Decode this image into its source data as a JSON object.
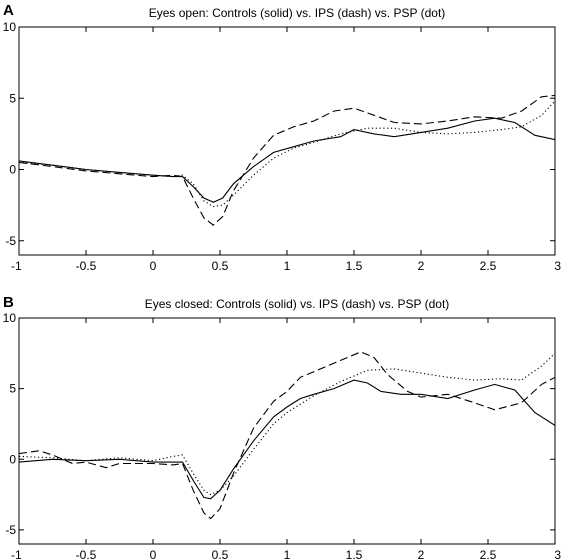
{
  "chart_data": [
    {
      "type": "line",
      "panel_label": "A",
      "title": "Eyes open: Controls (solid) vs. IPS (dash) vs. PSP (dot)",
      "xlim": [
        -1,
        3
      ],
      "ylim": [
        -6,
        10
      ],
      "xticks": [
        "-1",
        "-0.5",
        "0",
        "0.5",
        "1",
        "1.5",
        "2",
        "2.5",
        "3"
      ],
      "yticks": [
        "-5",
        "0",
        "5",
        "10"
      ],
      "grid": false,
      "series": [
        {
          "style": "solid",
          "x": [
            -1,
            -0.75,
            -0.5,
            -0.25,
            0,
            0.15,
            0.22,
            0.3,
            0.38,
            0.45,
            0.52,
            0.6,
            0.75,
            0.9,
            1.05,
            1.2,
            1.4,
            1.5,
            1.65,
            1.8,
            2.0,
            2.2,
            2.4,
            2.55,
            2.7,
            2.85,
            3.0
          ],
          "y": [
            0.6,
            0.3,
            0.0,
            -0.2,
            -0.4,
            -0.5,
            -0.5,
            -1.2,
            -2.0,
            -2.3,
            -2.0,
            -1.0,
            0.2,
            1.2,
            1.6,
            2.0,
            2.3,
            2.8,
            2.5,
            2.3,
            2.6,
            2.9,
            3.4,
            3.6,
            3.3,
            2.4,
            2.1
          ]
        },
        {
          "style": "dash",
          "x": [
            -1,
            -0.75,
            -0.5,
            -0.25,
            0,
            0.15,
            0.22,
            0.3,
            0.38,
            0.45,
            0.52,
            0.6,
            0.75,
            0.9,
            1.05,
            1.2,
            1.35,
            1.5,
            1.65,
            1.8,
            2.0,
            2.2,
            2.4,
            2.6,
            2.75,
            2.9,
            3.0
          ],
          "y": [
            0.5,
            0.2,
            -0.1,
            -0.3,
            -0.5,
            -0.4,
            -0.5,
            -2.0,
            -3.4,
            -3.9,
            -3.3,
            -1.5,
            0.8,
            2.4,
            3.0,
            3.4,
            4.1,
            4.3,
            3.8,
            3.3,
            3.2,
            3.4,
            3.7,
            3.6,
            4.1,
            5.1,
            5.2
          ]
        },
        {
          "style": "dot",
          "x": [
            -1,
            -0.75,
            -0.5,
            -0.25,
            0,
            0.15,
            0.22,
            0.3,
            0.38,
            0.45,
            0.52,
            0.6,
            0.75,
            0.9,
            1.05,
            1.2,
            1.4,
            1.6,
            1.8,
            2.0,
            2.2,
            2.4,
            2.6,
            2.75,
            2.9,
            3.0
          ],
          "y": [
            0.5,
            0.3,
            0.0,
            -0.2,
            -0.4,
            -0.5,
            -0.4,
            -1.0,
            -2.2,
            -2.6,
            -2.5,
            -1.8,
            -0.4,
            0.8,
            1.5,
            1.9,
            2.5,
            2.9,
            2.9,
            2.6,
            2.5,
            2.6,
            2.8,
            3.0,
            3.8,
            4.8
          ]
        }
      ]
    },
    {
      "type": "line",
      "panel_label": "B",
      "title": "Eyes closed: Controls (solid) vs. IPS (dash) vs. PSP (dot)",
      "xlim": [
        -1,
        3
      ],
      "ylim": [
        -6,
        10
      ],
      "xticks": [
        "-1",
        "-0.5",
        "0",
        "0.5",
        "1",
        "1.5",
        "2",
        "2.5",
        "3"
      ],
      "yticks": [
        "-5",
        "0",
        "5",
        "10"
      ],
      "grid": false,
      "series": [
        {
          "style": "solid",
          "x": [
            -1,
            -0.75,
            -0.5,
            -0.25,
            0,
            0.15,
            0.22,
            0.3,
            0.38,
            0.43,
            0.5,
            0.6,
            0.75,
            0.9,
            1.0,
            1.1,
            1.2,
            1.35,
            1.5,
            1.6,
            1.7,
            1.85,
            2.0,
            2.2,
            2.4,
            2.55,
            2.7,
            2.85,
            3.0
          ],
          "y": [
            -0.2,
            0.0,
            -0.1,
            0.0,
            -0.2,
            -0.2,
            -0.2,
            -1.5,
            -2.7,
            -2.8,
            -2.2,
            -0.7,
            1.3,
            3.0,
            3.7,
            4.3,
            4.6,
            5.0,
            5.6,
            5.4,
            4.8,
            4.6,
            4.6,
            4.3,
            4.9,
            5.3,
            4.9,
            3.3,
            2.4
          ]
        },
        {
          "style": "dash",
          "x": [
            -1,
            -0.85,
            -0.75,
            -0.6,
            -0.5,
            -0.35,
            -0.25,
            0,
            0.15,
            0.22,
            0.3,
            0.38,
            0.43,
            0.5,
            0.6,
            0.75,
            0.9,
            1.0,
            1.1,
            1.25,
            1.4,
            1.55,
            1.65,
            1.75,
            1.9,
            2.0,
            2.2,
            2.4,
            2.55,
            2.75,
            2.9,
            3.0
          ],
          "y": [
            0.4,
            0.6,
            0.3,
            -0.3,
            -0.2,
            -0.6,
            -0.3,
            -0.3,
            -0.4,
            -0.3,
            -2.2,
            -3.8,
            -4.2,
            -3.5,
            -1.0,
            2.2,
            4.1,
            4.8,
            5.8,
            6.4,
            7.0,
            7.6,
            7.2,
            6.0,
            4.8,
            4.4,
            4.6,
            4.0,
            3.5,
            4.0,
            5.3,
            5.8
          ]
        },
        {
          "style": "dot",
          "x": [
            -1,
            -0.75,
            -0.5,
            -0.25,
            0,
            0.15,
            0.22,
            0.3,
            0.38,
            0.43,
            0.5,
            0.6,
            0.75,
            0.9,
            1.0,
            1.2,
            1.4,
            1.6,
            1.8,
            2.0,
            2.2,
            2.4,
            2.6,
            2.75,
            2.9,
            3.0
          ],
          "y": [
            0.2,
            0.1,
            -0.1,
            0.1,
            -0.1,
            0.2,
            0.3,
            -1.0,
            -2.2,
            -2.5,
            -2.2,
            -1.2,
            0.7,
            2.5,
            3.3,
            4.5,
            5.5,
            6.3,
            6.4,
            6.1,
            5.8,
            5.6,
            5.7,
            5.6,
            6.6,
            7.5
          ]
        }
      ]
    }
  ]
}
